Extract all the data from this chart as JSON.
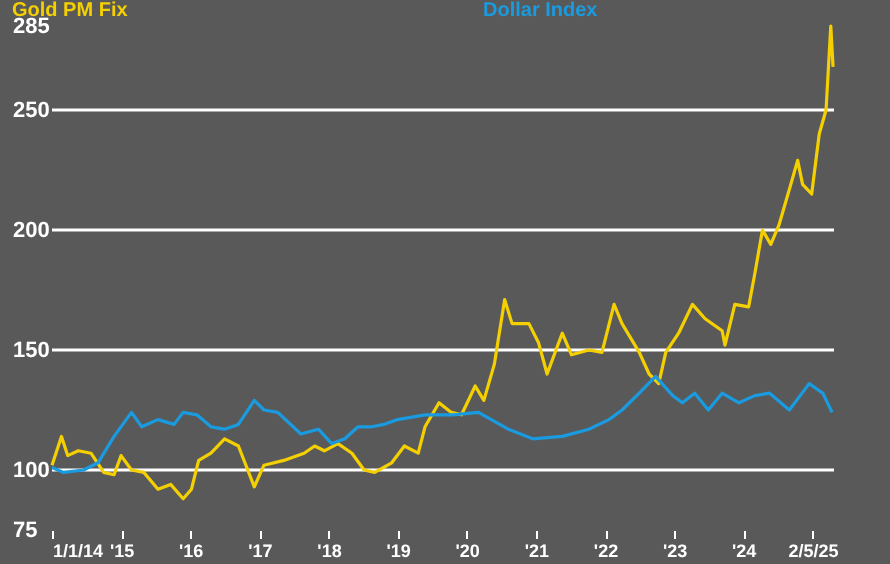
{
  "chart_data": {
    "type": "line",
    "legend": "top",
    "grid": "y",
    "xlim": [
      "2014-01-01",
      "2025-04-25"
    ],
    "ylim": [
      75,
      285
    ],
    "yticks": [
      75,
      100,
      150,
      200,
      250,
      285
    ],
    "xticks": [
      {
        "value": "2014-01-01",
        "label": "1/1/14"
      },
      {
        "value": "2015-01-01",
        "label": "'15"
      },
      {
        "value": "2016-01-01",
        "label": "'16"
      },
      {
        "value": "2017-01-01",
        "label": "'17"
      },
      {
        "value": "2018-01-01",
        "label": "'18"
      },
      {
        "value": "2019-01-01",
        "label": "'19"
      },
      {
        "value": "2020-01-01",
        "label": "'20"
      },
      {
        "value": "2021-01-01",
        "label": "'21"
      },
      {
        "value": "2022-01-01",
        "label": "'22"
      },
      {
        "value": "2023-01-01",
        "label": "'23"
      },
      {
        "value": "2024-01-01",
        "label": "'24"
      },
      {
        "value": "2025-01-01",
        "label": "2/5/25"
      }
    ],
    "series": [
      {
        "name": "Gold PM Fix",
        "color": "#f5d000",
        "x": [
          "2014-01-01",
          "2014-02-20",
          "2014-03-25",
          "2014-05-20",
          "2014-07-26",
          "2014-10-01",
          "2014-11-25",
          "2015-01-01",
          "2015-02-25",
          "2015-05-01",
          "2015-07-15",
          "2015-09-20",
          "2015-11-25",
          "2016-01-08",
          "2016-02-15",
          "2016-04-20",
          "2016-07-01",
          "2016-09-12",
          "2016-12-05",
          "2017-01-25",
          "2017-05-10",
          "2017-08-25",
          "2017-10-20",
          "2017-12-10",
          "2018-02-20",
          "2018-05-05",
          "2018-07-08",
          "2018-09-02",
          "2018-12-01",
          "2019-02-06",
          "2019-04-20",
          "2019-05-26",
          "2019-08-08",
          "2019-10-12",
          "2019-12-05",
          "2020-02-15",
          "2020-04-01",
          "2020-05-26",
          "2020-07-20",
          "2020-08-28",
          "2020-11-25",
          "2021-01-15",
          "2021-03-01",
          "2021-05-20",
          "2021-07-08",
          "2021-10-08",
          "2021-12-16",
          "2022-02-18",
          "2022-04-01",
          "2022-07-01",
          "2022-08-22",
          "2022-10-12",
          "2022-11-18",
          "2023-01-25",
          "2023-04-08",
          "2023-06-14",
          "2023-09-12",
          "2023-09-27",
          "2023-11-18",
          "2024-01-30",
          "2024-03-03",
          "2024-04-12",
          "2024-05-26",
          "2024-07-08",
          "2024-09-16",
          "2024-10-15",
          "2024-11-10",
          "2024-12-28",
          "2025-02-06",
          "2025-03-14",
          "2025-04-08",
          "2025-04-20"
        ],
        "values": [
          102,
          114,
          106,
          108,
          107,
          99,
          98,
          106,
          100,
          99,
          92,
          94,
          88,
          92,
          104,
          107,
          113,
          110,
          93,
          102,
          104,
          107,
          110,
          108,
          111,
          107,
          100,
          99,
          103,
          110,
          107,
          118,
          128,
          124,
          123,
          135,
          129,
          144,
          171,
          161,
          161,
          153,
          140,
          157,
          148,
          150,
          149,
          169,
          161,
          149,
          140,
          136,
          149,
          157,
          169,
          163,
          158,
          152,
          169,
          168,
          182,
          200,
          194,
          202,
          221,
          229,
          219,
          215,
          240,
          250,
          285,
          268
        ]
      },
      {
        "name": "Dollar Index",
        "color": "#1a9be0",
        "x": [
          "2014-01-01",
          "2014-03-03",
          "2014-06-17",
          "2014-09-01",
          "2014-11-25",
          "2015-02-25",
          "2015-04-20",
          "2015-07-15",
          "2015-10-08",
          "2015-11-25",
          "2016-02-06",
          "2016-04-20",
          "2016-07-01",
          "2016-09-12",
          "2016-12-05",
          "2017-01-25",
          "2017-04-08",
          "2017-08-08",
          "2017-11-08",
          "2018-01-18",
          "2018-03-28",
          "2018-06-06",
          "2018-08-18",
          "2018-10-20",
          "2019-01-01",
          "2019-05-26",
          "2019-10-20",
          "2020-03-03",
          "2020-08-08",
          "2020-12-15",
          "2021-05-20",
          "2021-10-08",
          "2022-01-22",
          "2022-04-01",
          "2022-07-01",
          "2022-09-25",
          "2022-12-25",
          "2023-02-14",
          "2023-04-20",
          "2023-07-01",
          "2023-09-12",
          "2023-12-10",
          "2024-03-03",
          "2024-05-20",
          "2024-09-01",
          "2024-12-15",
          "2025-02-25",
          "2025-04-15"
        ],
        "values": [
          101,
          99,
          100,
          103,
          114,
          124,
          118,
          121,
          119,
          124,
          123,
          118,
          117,
          119,
          129,
          125,
          124,
          115,
          117,
          111,
          113,
          118,
          118,
          119,
          121,
          123,
          123,
          124,
          117,
          113,
          114,
          117,
          121,
          125,
          132,
          139,
          131,
          128,
          132,
          125,
          132,
          128,
          131,
          132,
          125,
          136,
          132,
          124
        ]
      }
    ]
  }
}
